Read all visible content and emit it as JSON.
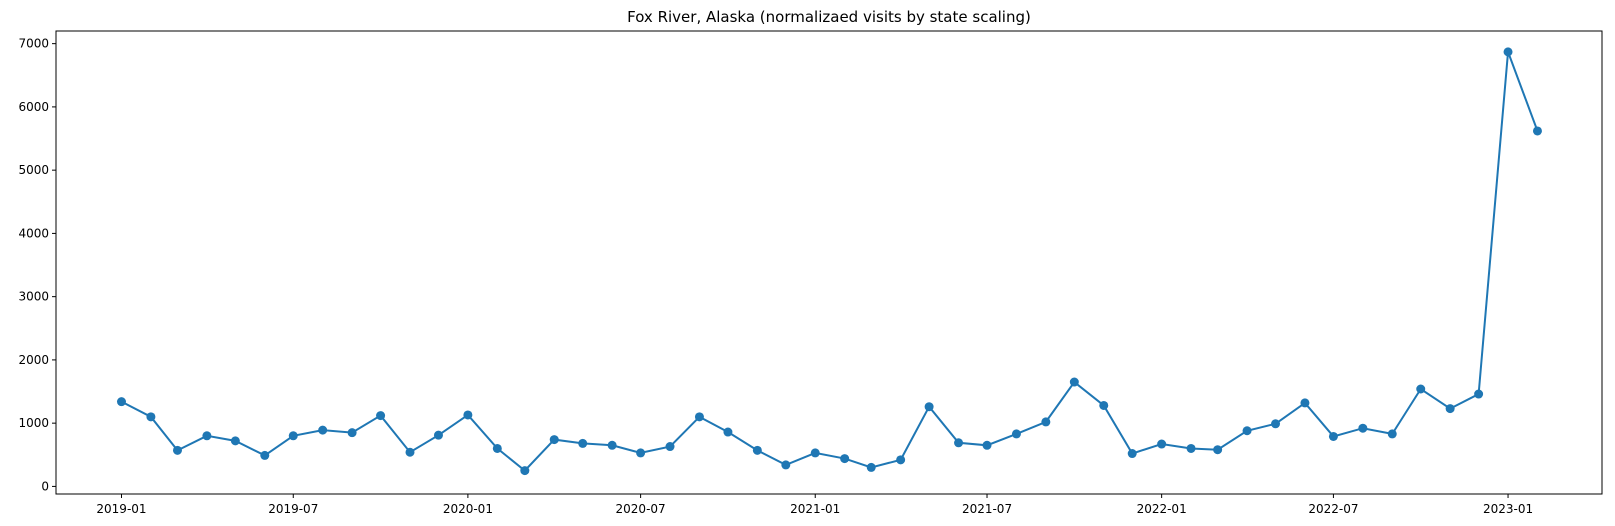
{
  "chart_data": {
    "type": "line",
    "title": "Fox River, Alaska (normalizaed visits by state scaling)",
    "xlabel": "",
    "ylabel": "",
    "grid": false,
    "legend": "none",
    "x_type": "date",
    "xlim": [
      "2018-10-24",
      "2023-04-10"
    ],
    "ylim": [
      -120,
      7200
    ],
    "x_ticks": [
      "2019-01",
      "2019-07",
      "2020-01",
      "2020-07",
      "2021-01",
      "2021-07",
      "2022-01",
      "2022-07",
      "2023-01"
    ],
    "y_ticks": [
      0,
      1000,
      2000,
      3000,
      4000,
      5000,
      6000,
      7000
    ],
    "color": "#1f77b4",
    "marker": "circle",
    "series": [
      {
        "x": [
          "2019-01-01",
          "2019-02-01",
          "2019-03-01",
          "2019-04-01",
          "2019-05-01",
          "2019-06-01",
          "2019-07-01",
          "2019-08-01",
          "2019-09-01",
          "2019-10-01",
          "2019-11-01",
          "2019-12-01",
          "2020-01-01",
          "2020-02-01",
          "2020-03-01",
          "2020-04-01",
          "2020-05-01",
          "2020-06-01",
          "2020-07-01",
          "2020-08-01",
          "2020-09-01",
          "2020-10-01",
          "2020-11-01",
          "2020-12-01",
          "2021-01-01",
          "2021-02-01",
          "2021-03-01",
          "2021-04-01",
          "2021-05-01",
          "2021-06-01",
          "2021-07-01",
          "2021-08-01",
          "2021-09-01",
          "2021-10-01",
          "2021-11-01",
          "2021-12-01",
          "2022-01-01",
          "2022-02-01",
          "2022-03-01",
          "2022-04-01",
          "2022-05-01",
          "2022-06-01",
          "2022-07-01",
          "2022-08-01",
          "2022-09-01",
          "2022-10-01",
          "2022-11-01",
          "2022-12-01",
          "2023-01-01",
          "2023-02-01"
        ],
        "y": [
          1340,
          1100,
          570,
          800,
          720,
          490,
          800,
          890,
          850,
          1120,
          540,
          810,
          1130,
          600,
          250,
          740,
          680,
          650,
          530,
          630,
          1100,
          860,
          570,
          340,
          530,
          440,
          300,
          420,
          1260,
          690,
          650,
          830,
          1020,
          1650,
          1280,
          520,
          670,
          600,
          580,
          880,
          990,
          1320,
          790,
          920,
          830,
          1540,
          1230,
          1460,
          6870,
          5620
        ]
      }
    ]
  }
}
